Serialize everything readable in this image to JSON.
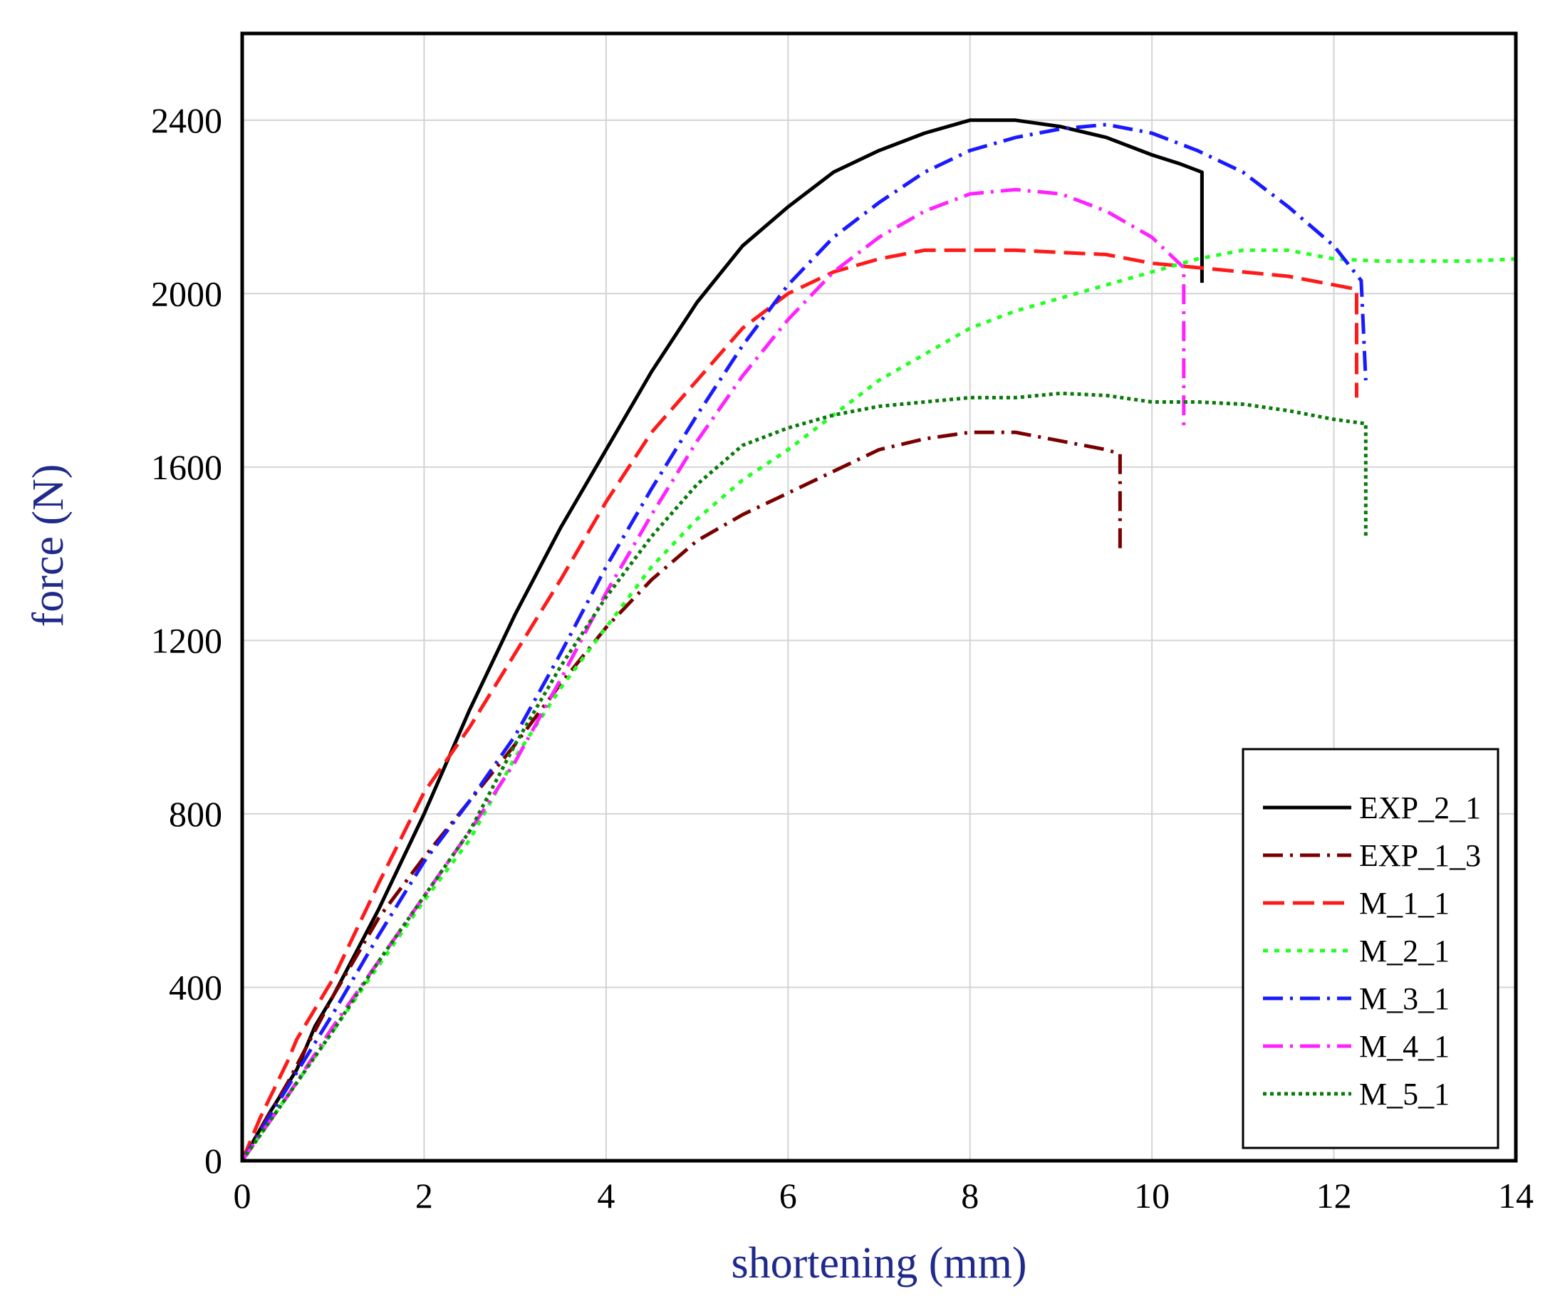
{
  "chart_data": {
    "type": "line",
    "title": "",
    "xlabel": "shortening (mm)",
    "ylabel": "force (N)",
    "xlim": [
      0,
      14
    ],
    "ylim": [
      0,
      2600
    ],
    "xticks": [
      0,
      2,
      4,
      6,
      8,
      10,
      12,
      14
    ],
    "yticks": [
      0,
      400,
      800,
      1200,
      1600,
      2000,
      2400
    ],
    "xtick_labels": [
      "0",
      "2",
      "4",
      "6",
      "8",
      "10",
      "12",
      "14"
    ],
    "ytick_labels": [
      "0",
      "400",
      "800",
      "1200",
      "1600",
      "2000",
      "2400"
    ],
    "grid": true,
    "legend_position": "bottom-right",
    "axis_title_color": "#1f2a8a",
    "series": [
      {
        "name": "EXP_2_1",
        "color": "#000000",
        "dash": "solid",
        "points": [
          [
            0,
            0
          ],
          [
            0.3,
            110
          ],
          [
            0.6,
            210
          ],
          [
            0.7,
            260
          ],
          [
            0.8,
            310
          ],
          [
            1,
            380
          ],
          [
            1.5,
            580
          ],
          [
            2,
            800
          ],
          [
            2.5,
            1040
          ],
          [
            3,
            1260
          ],
          [
            3.5,
            1460
          ],
          [
            4,
            1640
          ],
          [
            4.5,
            1820
          ],
          [
            5,
            1980
          ],
          [
            5.5,
            2110
          ],
          [
            6,
            2200
          ],
          [
            6.5,
            2280
          ],
          [
            7,
            2330
          ],
          [
            7.5,
            2370
          ],
          [
            8,
            2400
          ],
          [
            8.5,
            2400
          ],
          [
            9,
            2385
          ],
          [
            9.5,
            2360
          ],
          [
            10,
            2320
          ],
          [
            10.3,
            2300
          ],
          [
            10.55,
            2280
          ],
          [
            10.55,
            2025
          ]
        ]
      },
      {
        "name": "EXP_1_3",
        "color": "#7a0000",
        "dash": "dashdot",
        "points": [
          [
            0,
            0
          ],
          [
            0.5,
            180
          ],
          [
            1,
            380
          ],
          [
            1.5,
            560
          ],
          [
            2,
            700
          ],
          [
            2.5,
            830
          ],
          [
            3,
            960
          ],
          [
            3.5,
            1100
          ],
          [
            4,
            1230
          ],
          [
            4.5,
            1340
          ],
          [
            5,
            1430
          ],
          [
            5.5,
            1490
          ],
          [
            6,
            1540
          ],
          [
            6.5,
            1590
          ],
          [
            7,
            1640
          ],
          [
            7.5,
            1665
          ],
          [
            8,
            1680
          ],
          [
            8.5,
            1680
          ],
          [
            9,
            1660
          ],
          [
            9.5,
            1640
          ],
          [
            9.65,
            1630
          ],
          [
            9.65,
            1400
          ]
        ]
      },
      {
        "name": "M_1_1",
        "color": "#ff1a1a",
        "dash": "longdash",
        "points": [
          [
            0,
            0
          ],
          [
            0.2,
            100
          ],
          [
            0.5,
            230
          ],
          [
            0.6,
            280
          ],
          [
            1,
            420
          ],
          [
            1.5,
            640
          ],
          [
            2,
            850
          ],
          [
            2.5,
            1000
          ],
          [
            3,
            1170
          ],
          [
            3.5,
            1340
          ],
          [
            4,
            1520
          ],
          [
            4.5,
            1680
          ],
          [
            5,
            1800
          ],
          [
            5.5,
            1920
          ],
          [
            6,
            2000
          ],
          [
            6.5,
            2050
          ],
          [
            7,
            2080
          ],
          [
            7.5,
            2100
          ],
          [
            8,
            2100
          ],
          [
            8.5,
            2100
          ],
          [
            9,
            2095
          ],
          [
            9.5,
            2090
          ],
          [
            10,
            2070
          ],
          [
            10.5,
            2060
          ],
          [
            11,
            2050
          ],
          [
            11.5,
            2040
          ],
          [
            12,
            2020
          ],
          [
            12.25,
            2010
          ],
          [
            12.25,
            1760
          ]
        ]
      },
      {
        "name": "M_2_1",
        "color": "#22ff22",
        "dash": "dotted",
        "points": [
          [
            0,
            0
          ],
          [
            0.5,
            150
          ],
          [
            1,
            300
          ],
          [
            1.5,
            450
          ],
          [
            2,
            600
          ],
          [
            2.5,
            740
          ],
          [
            3,
            930
          ],
          [
            3.5,
            1090
          ],
          [
            4,
            1230
          ],
          [
            4.5,
            1370
          ],
          [
            5,
            1480
          ],
          [
            5.5,
            1570
          ],
          [
            6,
            1640
          ],
          [
            6.5,
            1720
          ],
          [
            7,
            1800
          ],
          [
            7.5,
            1860
          ],
          [
            8,
            1920
          ],
          [
            8.5,
            1960
          ],
          [
            9,
            1990
          ],
          [
            9.5,
            2020
          ],
          [
            10,
            2050
          ],
          [
            10.5,
            2080
          ],
          [
            11,
            2100
          ],
          [
            11.5,
            2100
          ],
          [
            12,
            2080
          ],
          [
            12.5,
            2075
          ],
          [
            13,
            2075
          ],
          [
            13.5,
            2075
          ],
          [
            14,
            2080
          ]
        ]
      },
      {
        "name": "M_3_1",
        "color": "#1a1aff",
        "dash": "dashdot",
        "points": [
          [
            0,
            0
          ],
          [
            0.5,
            170
          ],
          [
            1,
            340
          ],
          [
            1.5,
            520
          ],
          [
            2,
            690
          ],
          [
            2.5,
            830
          ],
          [
            3,
            980
          ],
          [
            3.5,
            1170
          ],
          [
            4,
            1370
          ],
          [
            4.5,
            1550
          ],
          [
            5,
            1720
          ],
          [
            5.5,
            1880
          ],
          [
            6,
            2020
          ],
          [
            6.5,
            2130
          ],
          [
            7,
            2210
          ],
          [
            7.5,
            2280
          ],
          [
            8,
            2330
          ],
          [
            8.5,
            2360
          ],
          [
            9,
            2380
          ],
          [
            9.5,
            2390
          ],
          [
            10,
            2370
          ],
          [
            10.5,
            2330
          ],
          [
            11,
            2280
          ],
          [
            11.5,
            2200
          ],
          [
            12,
            2110
          ],
          [
            12.3,
            2030
          ],
          [
            12.35,
            1800
          ]
        ]
      },
      {
        "name": "M_4_1",
        "color": "#ff22ff",
        "dash": "dashdot",
        "points": [
          [
            0,
            0
          ],
          [
            0.5,
            150
          ],
          [
            1,
            310
          ],
          [
            1.5,
            460
          ],
          [
            2,
            610
          ],
          [
            2.5,
            760
          ],
          [
            3,
            920
          ],
          [
            3.5,
            1110
          ],
          [
            4,
            1310
          ],
          [
            4.5,
            1490
          ],
          [
            5,
            1660
          ],
          [
            5.5,
            1810
          ],
          [
            6,
            1940
          ],
          [
            6.5,
            2050
          ],
          [
            7,
            2130
          ],
          [
            7.5,
            2190
          ],
          [
            8,
            2230
          ],
          [
            8.5,
            2240
          ],
          [
            9,
            2230
          ],
          [
            9.5,
            2190
          ],
          [
            10,
            2130
          ],
          [
            10.35,
            2060
          ],
          [
            10.35,
            1690
          ]
        ]
      },
      {
        "name": "M_5_1",
        "color": "#0a7a0a",
        "dash": "dense-dotted",
        "points": [
          [
            0,
            0
          ],
          [
            0.5,
            150
          ],
          [
            1,
            300
          ],
          [
            1.5,
            460
          ],
          [
            2,
            610
          ],
          [
            2.5,
            760
          ],
          [
            3,
            960
          ],
          [
            3.5,
            1140
          ],
          [
            4,
            1300
          ],
          [
            4.5,
            1440
          ],
          [
            5,
            1560
          ],
          [
            5.5,
            1650
          ],
          [
            6,
            1690
          ],
          [
            6.5,
            1720
          ],
          [
            7,
            1740
          ],
          [
            7.5,
            1750
          ],
          [
            8,
            1760
          ],
          [
            8.5,
            1760
          ],
          [
            9,
            1770
          ],
          [
            9.5,
            1765
          ],
          [
            10,
            1750
          ],
          [
            10.5,
            1750
          ],
          [
            11,
            1745
          ],
          [
            11.5,
            1730
          ],
          [
            12,
            1710
          ],
          [
            12.35,
            1700
          ],
          [
            12.35,
            1440
          ]
        ]
      }
    ]
  }
}
